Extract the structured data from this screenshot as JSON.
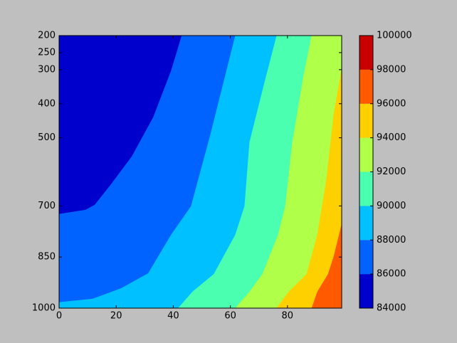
{
  "chart_data": {
    "type": "contourf",
    "xlim": [
      0,
      99
    ],
    "xticks": [
      0,
      20,
      40,
      60,
      80
    ],
    "ylim": [
      200,
      1000
    ],
    "y_inverted": true,
    "yticks": [
      200,
      250,
      300,
      400,
      500,
      700,
      850,
      1000
    ],
    "levels": [
      84000,
      86000,
      88000,
      90000,
      92000,
      94000,
      96000,
      98000,
      100000
    ],
    "colors": [
      "#0000cd",
      "#0062ff",
      "#00c0ff",
      "#4affaf",
      "#b0ff48",
      "#ffd000",
      "#ff5a00",
      "#c80000"
    ],
    "contours": [
      {
        "level": 86000,
        "x": [
          43,
          39.25,
          33,
          25.5,
          18,
          12.5,
          9.25,
          0
        ],
        "y": [
          200,
          304,
          440,
          555,
          639,
          697,
          712,
          724
        ]
      },
      {
        "level": 88000,
        "x": [
          61.75,
          53,
          46.25,
          39.25,
          31.25,
          21.75,
          11.75,
          0
        ],
        "y": [
          200,
          492,
          701,
          785,
          898,
          942,
          973,
          983
        ]
      },
      {
        "level": 90000,
        "x": [
          76.25,
          71.75,
          66.75,
          65,
          61.75,
          54.25,
          46.75,
          41.75
        ],
        "y": [
          200,
          346,
          513,
          701,
          785,
          900,
          952,
          1000
        ]
      },
      {
        "level": 92000,
        "x": [
          88.5,
          85.5,
          81.75,
          79.25,
          76.75,
          71.25,
          66.75,
          61.75
        ],
        "y": [
          200,
          325,
          513,
          701,
          785,
          900,
          952,
          1000
        ]
      },
      {
        "level": 94000,
        "x": [
          99,
          96.25,
          93.75,
          90.5,
          86.75,
          80.5,
          76.25
        ],
        "y": [
          300,
          430,
          618,
          785,
          900,
          952,
          1000
        ]
      },
      {
        "level": 96000,
        "x": [
          99,
          96.25,
          94.25,
          90.5,
          88.5
        ],
        "y": [
          754,
          848,
          900,
          952,
          1000
        ]
      }
    ]
  }
}
